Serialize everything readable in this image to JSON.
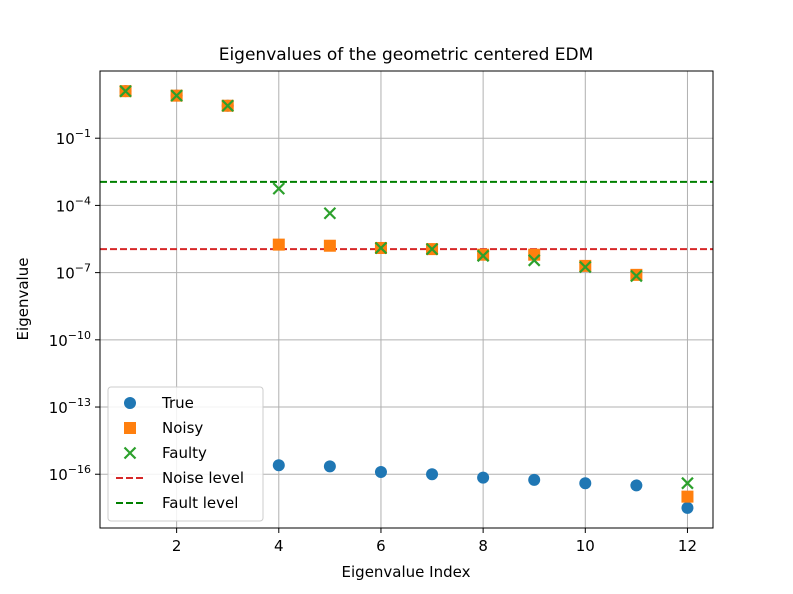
{
  "chart_data": {
    "type": "scatter",
    "title": "Eigenvalues of the geometric centered EDM",
    "xlabel": "Eigenvalue Index",
    "ylabel": "Eigenvalue",
    "yscale": "log",
    "xlim": [
      0.5,
      12.5
    ],
    "ylim_log10": [
      -18.4,
      2.0
    ],
    "xticks": [
      2,
      4,
      6,
      8,
      10,
      12
    ],
    "yticks_log10": [
      -16,
      -13,
      -10,
      -7,
      -4,
      -1
    ],
    "grid": true,
    "legend_position": "lower-left",
    "x": [
      1,
      2,
      3,
      4,
      5,
      6,
      7,
      8,
      9,
      10,
      11,
      12
    ],
    "series": [
      {
        "name": "True",
        "marker": "circle",
        "color": "#1f77b4",
        "log10_values": [
          1.1,
          0.9,
          0.45,
          -15.6,
          -15.65,
          -15.9,
          -16.0,
          -16.15,
          -16.25,
          -16.4,
          -16.5,
          -17.5
        ]
      },
      {
        "name": "Noisy",
        "marker": "square",
        "color": "#ff7f0e",
        "log10_values": [
          1.1,
          0.9,
          0.45,
          -5.75,
          -5.8,
          -5.9,
          -5.95,
          -6.2,
          -6.2,
          -6.7,
          -7.1,
          -17.0
        ]
      },
      {
        "name": "Faulty",
        "marker": "x",
        "color": "#2ca02c",
        "log10_values": [
          1.1,
          0.9,
          0.45,
          -3.25,
          -4.35,
          -5.9,
          -5.95,
          -6.25,
          -6.45,
          -6.75,
          -7.15,
          -16.4
        ]
      }
    ],
    "reference_lines": [
      {
        "name": "Noise level",
        "color": "#d62728",
        "style": "dashed",
        "log10_value": -5.95
      },
      {
        "name": "Fault level",
        "color": "#008000",
        "style": "dashed",
        "log10_value": -2.95
      }
    ]
  }
}
